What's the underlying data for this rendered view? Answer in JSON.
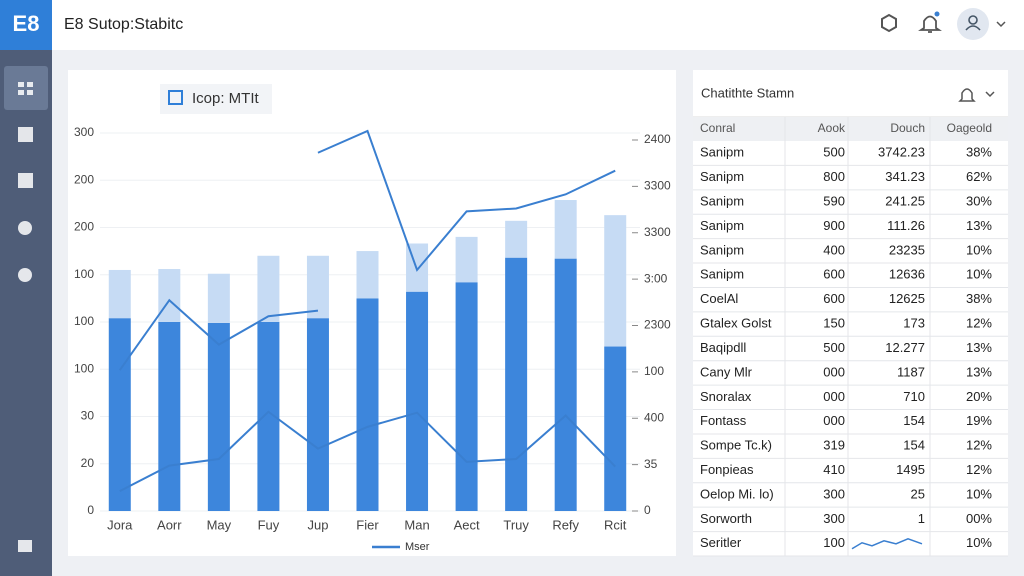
{
  "header": {
    "logo": "E8",
    "title": "E8 Sutop:Stabitc"
  },
  "chart": {
    "type": "bar",
    "title": "Icop: MTIt",
    "categories": [
      "Jora",
      "Aorr",
      "May",
      "Fuy",
      "Jup",
      "Fier",
      "Man",
      "Aect",
      "Truy",
      "Refy",
      "Rcit"
    ],
    "left_axis_labels": [
      "300",
      "200",
      "200",
      "100",
      "100",
      "100",
      "30",
      "20",
      "0"
    ],
    "right_axis_labels": [
      "2400",
      "3300",
      "3300",
      "3:00",
      "2300",
      "100",
      "400",
      "35",
      "0"
    ],
    "ylim": [
      0,
      420
    ],
    "bars": [
      {
        "color": "#3d86dc",
        "values": [
          204,
          200,
          199,
          200,
          204,
          225,
          232,
          242,
          268,
          267,
          174
        ]
      },
      {
        "color": "#c6dbf4",
        "values": [
          51,
          56,
          52,
          70,
          66,
          50,
          51,
          48,
          39,
          62,
          139
        ]
      }
    ],
    "lines": [
      {
        "color": "#3a7fd0",
        "values": [
          149,
          223,
          176,
          206,
          212,
          null,
          null,
          null,
          null,
          null,
          null
        ]
      },
      {
        "color": "#3a7fd0",
        "values": [
          null,
          null,
          null,
          null,
          379,
          402,
          255,
          317,
          320,
          335,
          360
        ]
      },
      {
        "color": "#3a7fd0",
        "values": [
          21,
          48,
          55,
          105,
          66,
          89,
          104,
          52,
          55,
          101,
          47
        ]
      }
    ],
    "legend": "Mser"
  },
  "table": {
    "title": "Chatithte Stamn",
    "columns": [
      "Conral",
      "Aook",
      "Douch",
      "Oageold"
    ],
    "rows": [
      [
        "Sanipm",
        "500",
        "3742.23",
        "38%"
      ],
      [
        "Sanipm",
        "800",
        "341.23",
        "62%"
      ],
      [
        "Sanipm",
        "590",
        "241.25",
        "30%"
      ],
      [
        "Sanipm",
        "900",
        "111.26",
        "13%"
      ],
      [
        "Sanipm",
        "400",
        "23235",
        "10%"
      ],
      [
        "Sanipm",
        "600",
        "12636",
        "10%"
      ],
      [
        "CoelAl",
        "600",
        "12625",
        "38%"
      ],
      [
        "Gtalex Golst",
        "150",
        "173",
        "12%"
      ],
      [
        "Baqipdll",
        "500",
        "12.277",
        "13%"
      ],
      [
        "Cany Mlr",
        "000",
        "1187",
        "13%"
      ],
      [
        "Snoralax",
        "000",
        "710",
        "20%"
      ],
      [
        "Fontass",
        "000",
        "154",
        "19%"
      ],
      [
        "Sompe Tc.k)",
        "319",
        "154",
        "12%"
      ],
      [
        "Fonpieas",
        "410",
        "1495",
        "12%"
      ],
      [
        "Oelop Mi. lo)",
        "300",
        "25",
        "10%"
      ],
      [
        "Sorworth",
        "300",
        "1",
        "00%"
      ],
      [
        "Seritler",
        "100",
        "",
        "10%"
      ]
    ]
  }
}
